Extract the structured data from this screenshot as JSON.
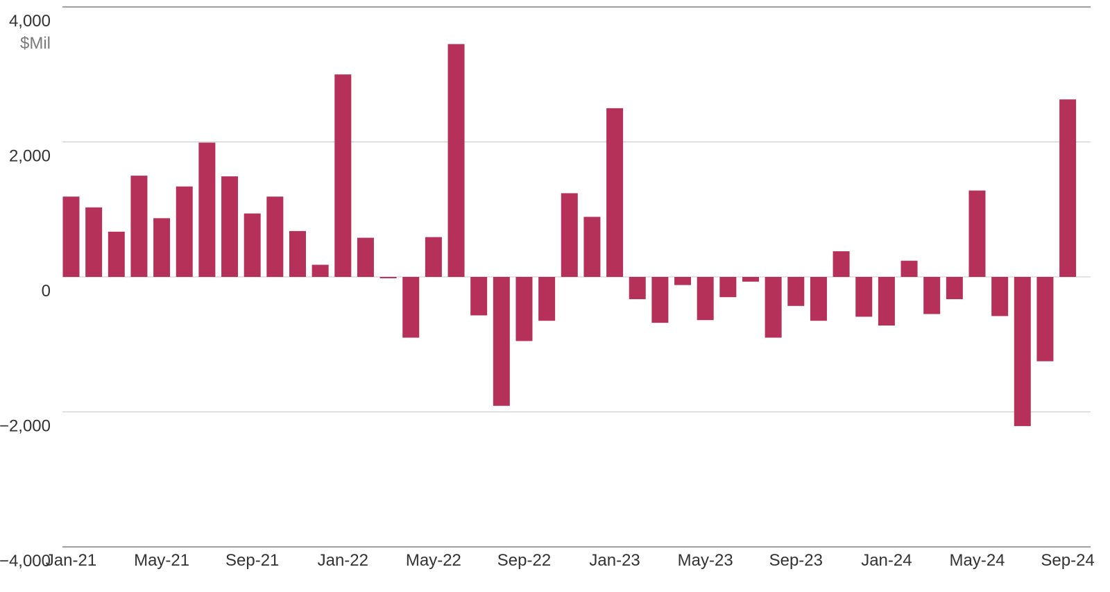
{
  "chart_data": {
    "type": "bar",
    "title": "",
    "xlabel": "",
    "ylabel": "",
    "y_unit": "$Mil",
    "ylim": [
      -4000,
      4000
    ],
    "yticks": [
      {
        "value": 4000,
        "label": "4,000"
      },
      {
        "value": 2000,
        "label": "2,000"
      },
      {
        "value": 0,
        "label": "0"
      },
      {
        "value": -2000,
        "label": "−2,000"
      },
      {
        "value": -4000,
        "label": "−4,000"
      }
    ],
    "grid": true,
    "legend": "none",
    "bar_color": "#b5315a",
    "categories": [
      "Jan-21",
      "Feb-21",
      "Mar-21",
      "Apr-21",
      "May-21",
      "Jun-21",
      "Jul-21",
      "Aug-21",
      "Sep-21",
      "Oct-21",
      "Nov-21",
      "Dec-21",
      "Jan-22",
      "Feb-22",
      "Mar-22",
      "Apr-22",
      "May-22",
      "Jun-22",
      "Jul-22",
      "Aug-22",
      "Sep-22",
      "Oct-22",
      "Nov-22",
      "Dec-22",
      "Jan-23",
      "Feb-23",
      "Mar-23",
      "Apr-23",
      "May-23",
      "Jun-23",
      "Jul-23",
      "Aug-23",
      "Sep-23",
      "Oct-23",
      "Nov-23",
      "Dec-23",
      "Jan-24",
      "Feb-24",
      "Mar-24",
      "Apr-24",
      "May-24",
      "Jun-24",
      "Jul-24",
      "Aug-24",
      "Sep-24"
    ],
    "values": [
      1190,
      1030,
      670,
      1500,
      870,
      1340,
      1990,
      1490,
      940,
      1190,
      680,
      180,
      3000,
      580,
      -20,
      -900,
      590,
      3450,
      -570,
      -1910,
      -950,
      -650,
      1240,
      890,
      2500,
      -330,
      -680,
      -120,
      -640,
      -300,
      -70,
      -900,
      -430,
      -650,
      380,
      -590,
      -720,
      240,
      -550,
      -330,
      1280,
      -580,
      -2210,
      -1250,
      2630
    ],
    "x_tick_labels": [
      {
        "index": 0,
        "label": "Jan-21"
      },
      {
        "index": 4,
        "label": "May-21"
      },
      {
        "index": 8,
        "label": "Sep-21"
      },
      {
        "index": 12,
        "label": "Jan-22"
      },
      {
        "index": 16,
        "label": "May-22"
      },
      {
        "index": 20,
        "label": "Sep-22"
      },
      {
        "index": 24,
        "label": "Jan-23"
      },
      {
        "index": 28,
        "label": "May-23"
      },
      {
        "index": 32,
        "label": "Sep-23"
      },
      {
        "index": 36,
        "label": "Jan-24"
      },
      {
        "index": 40,
        "label": "May-24"
      },
      {
        "index": 44,
        "label": "Sep-24"
      }
    ]
  }
}
